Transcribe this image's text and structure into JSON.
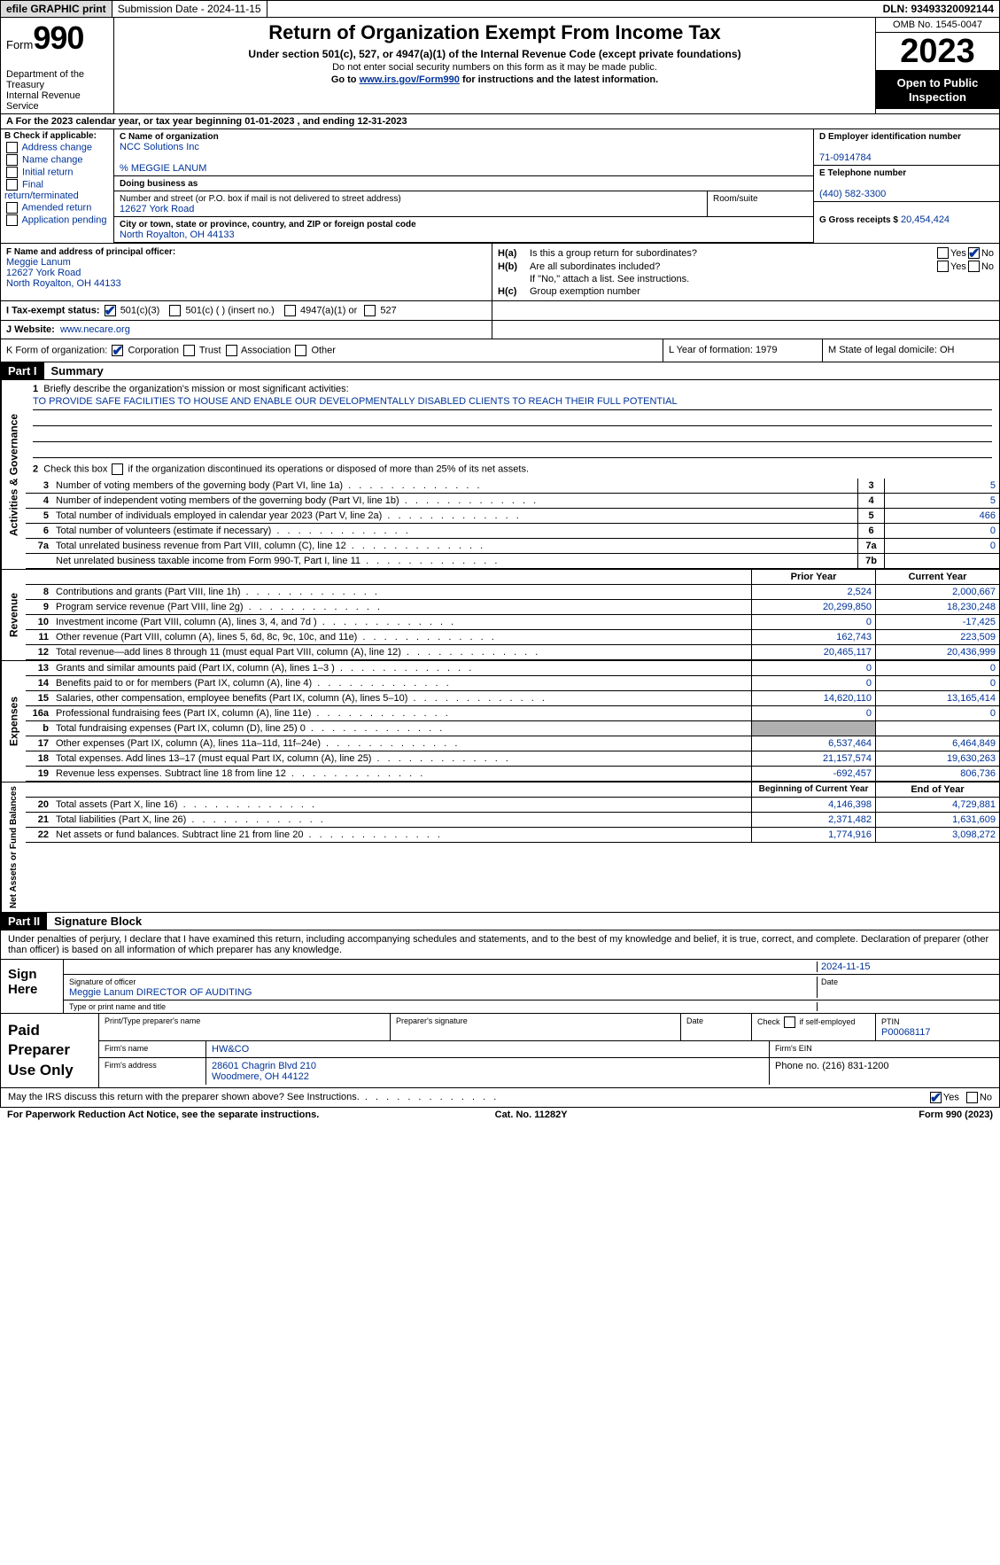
{
  "topbar": {
    "efile": "efile GRAPHIC print",
    "submission": "Submission Date - 2024-11-15",
    "dln": "DLN: 93493320092144"
  },
  "header": {
    "form_word": "Form",
    "form_num": "990",
    "dept": "Department of the Treasury\nInternal Revenue Service",
    "title": "Return of Organization Exempt From Income Tax",
    "sub": "Under section 501(c), 527, or 4947(a)(1) of the Internal Revenue Code (except private foundations)",
    "note1": "Do not enter social security numbers on this form as it may be made public.",
    "note2_pre": "Go to ",
    "note2_link": "www.irs.gov/Form990",
    "note2_post": " for instructions and the latest information.",
    "omb": "OMB No. 1545-0047",
    "year": "2023",
    "inspection": "Open to Public Inspection"
  },
  "row_a": "A   For the 2023 calendar year, or tax year beginning 01-01-2023    , and ending 12-31-2023",
  "col_b": {
    "hdr": "B Check if applicable:",
    "items": [
      "Address change",
      "Name change",
      "Initial return",
      "Final return/terminated",
      "Amended return",
      "Application pending"
    ]
  },
  "col_c": {
    "name_lbl": "C Name of organization",
    "name": "NCC Solutions Inc",
    "care_of": "% MEGGIE LANUM",
    "dba_lbl": "Doing business as",
    "dba": "",
    "street_lbl": "Number and street (or P.O. box if mail is not delivered to street address)",
    "street": "12627 York Road",
    "room_lbl": "Room/suite",
    "room": "",
    "city_lbl": "City or town, state or province, country, and ZIP or foreign postal code",
    "city": "North Royalton, OH  44133",
    "officer_lbl": "F  Name and address of principal officer:",
    "officer_name": "Meggie Lanum",
    "officer_street": "12627 York Road",
    "officer_city": "North Royalton, OH  44133"
  },
  "col_d": {
    "ein_lbl": "D Employer identification number",
    "ein": "71-0914784",
    "phone_lbl": "E Telephone number",
    "phone": "(440) 582-3300",
    "gross_lbl": "G Gross receipts $",
    "gross": "20,454,424"
  },
  "row_h": {
    "ha": "H(a)  Is this a group return for subordinates?",
    "hb": "H(b)  Are all subordinates included?",
    "hb_note": "If \"No,\" attach a list. See instructions.",
    "hc": "H(c)  Group exemption number"
  },
  "row_i": {
    "lbl": "I   Tax-exempt status:",
    "opts": [
      "501(c)(3)",
      "501(c) (  ) (insert no.)",
      "4947(a)(1) or",
      "527"
    ]
  },
  "row_j": {
    "lbl": "J   Website:",
    "val": "www.necare.org"
  },
  "row_k": {
    "lbl": "K Form of organization:",
    "opts": [
      "Corporation",
      "Trust",
      "Association",
      "Other"
    ],
    "l": "L Year of formation: 1979",
    "m": "M State of legal domicile: OH"
  },
  "part1": {
    "num": "Part I",
    "title": "Summary"
  },
  "gov": {
    "side": "Activities & Governance",
    "l1": "Briefly describe the organization's mission or most significant activities:",
    "mission": "TO PROVIDE SAFE FACILITIES TO HOUSE AND ENABLE OUR DEVELOPMENTALLY DISABLED CLIENTS TO REACH THEIR FULL POTENTIAL",
    "l2": "Check this box         if the organization discontinued its operations or disposed of more than 25% of its net assets.",
    "lines": [
      {
        "n": "3",
        "t": "Number of voting members of the governing body (Part VI, line 1a)",
        "b": "3",
        "v": "5"
      },
      {
        "n": "4",
        "t": "Number of independent voting members of the governing body (Part VI, line 1b)",
        "b": "4",
        "v": "5"
      },
      {
        "n": "5",
        "t": "Total number of individuals employed in calendar year 2023 (Part V, line 2a)",
        "b": "5",
        "v": "466"
      },
      {
        "n": "6",
        "t": "Total number of volunteers (estimate if necessary)",
        "b": "6",
        "v": "0"
      },
      {
        "n": "7a",
        "t": "Total unrelated business revenue from Part VIII, column (C), line 12",
        "b": "7a",
        "v": "0"
      },
      {
        "n": "",
        "t": "Net unrelated business taxable income from Form 990-T, Part I, line 11",
        "b": "7b",
        "v": ""
      }
    ]
  },
  "rev": {
    "side": "Revenue",
    "hdr": {
      "v1": "Prior Year",
      "v2": "Current Year"
    },
    "lines": [
      {
        "n": "8",
        "t": "Contributions and grants (Part VIII, line 1h)",
        "v1": "2,524",
        "v2": "2,000,667"
      },
      {
        "n": "9",
        "t": "Program service revenue (Part VIII, line 2g)",
        "v1": "20,299,850",
        "v2": "18,230,248"
      },
      {
        "n": "10",
        "t": "Investment income (Part VIII, column (A), lines 3, 4, and 7d )",
        "v1": "0",
        "v2": "-17,425"
      },
      {
        "n": "11",
        "t": "Other revenue (Part VIII, column (A), lines 5, 6d, 8c, 9c, 10c, and 11e)",
        "v1": "162,743",
        "v2": "223,509"
      },
      {
        "n": "12",
        "t": "Total revenue—add lines 8 through 11 (must equal Part VIII, column (A), line 12)",
        "v1": "20,465,117",
        "v2": "20,436,999"
      }
    ]
  },
  "exp": {
    "side": "Expenses",
    "lines": [
      {
        "n": "13",
        "t": "Grants and similar amounts paid (Part IX, column (A), lines 1–3 )",
        "v1": "0",
        "v2": "0"
      },
      {
        "n": "14",
        "t": "Benefits paid to or for members (Part IX, column (A), line 4)",
        "v1": "0",
        "v2": "0"
      },
      {
        "n": "15",
        "t": "Salaries, other compensation, employee benefits (Part IX, column (A), lines 5–10)",
        "v1": "14,620,110",
        "v2": "13,165,414"
      },
      {
        "n": "16a",
        "t": "Professional fundraising fees (Part IX, column (A), line 11e)",
        "v1": "0",
        "v2": "0"
      },
      {
        "n": "b",
        "t": "Total fundraising expenses (Part IX, column (D), line 25) 0",
        "v1": "",
        "v2": "",
        "gray": true
      },
      {
        "n": "17",
        "t": "Other expenses (Part IX, column (A), lines 11a–11d, 11f–24e)",
        "v1": "6,537,464",
        "v2": "6,464,849"
      },
      {
        "n": "18",
        "t": "Total expenses. Add lines 13–17 (must equal Part IX, column (A), line 25)",
        "v1": "21,157,574",
        "v2": "19,630,263"
      },
      {
        "n": "19",
        "t": "Revenue less expenses. Subtract line 18 from line 12",
        "v1": "-692,457",
        "v2": "806,736"
      }
    ]
  },
  "net": {
    "side": "Net Assets or Fund Balances",
    "hdr": {
      "v1": "Beginning of Current Year",
      "v2": "End of Year"
    },
    "lines": [
      {
        "n": "20",
        "t": "Total assets (Part X, line 16)",
        "v1": "4,146,398",
        "v2": "4,729,881"
      },
      {
        "n": "21",
        "t": "Total liabilities (Part X, line 26)",
        "v1": "2,371,482",
        "v2": "1,631,609"
      },
      {
        "n": "22",
        "t": "Net assets or fund balances. Subtract line 21 from line 20",
        "v1": "1,774,916",
        "v2": "3,098,272"
      }
    ]
  },
  "part2": {
    "num": "Part II",
    "title": "Signature Block"
  },
  "perjury": "Under penalties of perjury, I declare that I have examined this return, including accompanying schedules and statements, and to the best of my knowledge and belief, it is true, correct, and complete. Declaration of preparer (other than officer) is based on all information of which preparer has any knowledge.",
  "sign": {
    "lbl": "Sign Here",
    "date": "2024-11-15",
    "sig_lbl": "Signature of officer",
    "name": "Meggie Lanum DIRECTOR OF AUDITING",
    "type_lbl": "Type or print name and title",
    "date_lbl": "Date"
  },
  "prep": {
    "lbl": "Paid Preparer Use Only",
    "r1": {
      "c1": "Print/Type preparer's name",
      "c2": "Preparer's signature",
      "c3": "Date",
      "c4_lbl": "Check        if self-employed",
      "c5_lbl": "PTIN",
      "c5": "P00068117"
    },
    "r2": {
      "c1": "Firm's name",
      "c2": "HW&CO",
      "c3": "Firm's EIN"
    },
    "r3": {
      "c1": "Firm's address",
      "c2": "28601 Chagrin Blvd 210\nWoodmere, OH  44122",
      "c3": "Phone no. (216) 831-1200"
    }
  },
  "discuss": "May the IRS discuss this return with the preparer shown above? See Instructions.",
  "foot": {
    "l": "For Paperwork Reduction Act Notice, see the separate instructions.",
    "c": "Cat. No. 11282Y",
    "r": "Form 990 (2023)"
  }
}
